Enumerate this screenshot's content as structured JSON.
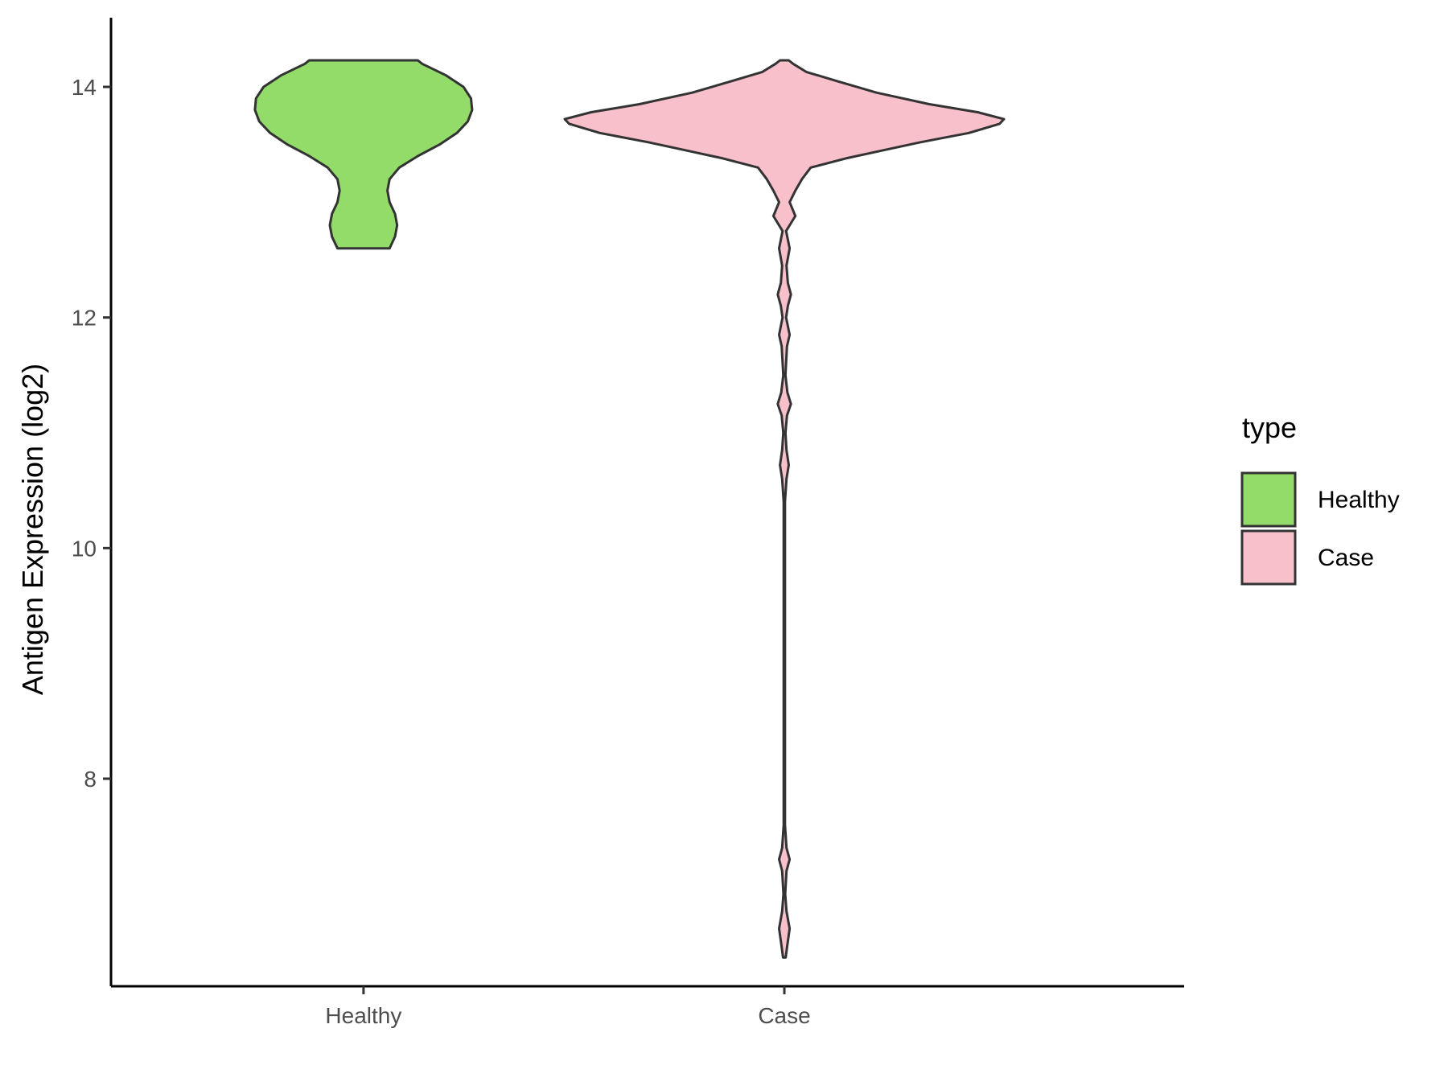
{
  "chart_data": {
    "type": "violin",
    "title": "",
    "xlabel": "",
    "ylabel": "Antigen Expression (log2)",
    "ylim": [
      6.2,
      14.6
    ],
    "yticks": [
      8,
      10,
      12,
      14
    ],
    "categories": [
      "Healthy",
      "Case"
    ],
    "grid": false,
    "legend": {
      "title": "type",
      "position": "right",
      "entries": [
        {
          "label": "Healthy",
          "color": "#93dc6a"
        },
        {
          "label": "Case",
          "color": "#f8c0cb"
        }
      ]
    },
    "series": [
      {
        "category": "Healthy",
        "color": "#93dc6a",
        "min": 12.6,
        "max": 14.23,
        "density_profile": [
          [
            12.6,
            0.24
          ],
          [
            12.7,
            0.29
          ],
          [
            12.8,
            0.31
          ],
          [
            12.9,
            0.29
          ],
          [
            13.0,
            0.24
          ],
          [
            13.1,
            0.22
          ],
          [
            13.2,
            0.24
          ],
          [
            13.3,
            0.33
          ],
          [
            13.4,
            0.5
          ],
          [
            13.5,
            0.7
          ],
          [
            13.6,
            0.86
          ],
          [
            13.7,
            0.96
          ],
          [
            13.8,
            1.0
          ],
          [
            13.9,
            0.99
          ],
          [
            14.0,
            0.92
          ],
          [
            14.1,
            0.76
          ],
          [
            14.2,
            0.54
          ],
          [
            14.23,
            0.5
          ]
        ]
      },
      {
        "category": "Case",
        "color": "#f8c0cb",
        "min": 6.45,
        "max": 14.23,
        "density_profile": [
          [
            6.45,
            0.006
          ],
          [
            6.55,
            0.013
          ],
          [
            6.7,
            0.024
          ],
          [
            6.85,
            0.01
          ],
          [
            7.0,
            0.004
          ],
          [
            7.2,
            0.01
          ],
          [
            7.3,
            0.024
          ],
          [
            7.4,
            0.01
          ],
          [
            7.6,
            0.003
          ],
          [
            10.4,
            0.003
          ],
          [
            10.6,
            0.01
          ],
          [
            10.72,
            0.02
          ],
          [
            10.85,
            0.01
          ],
          [
            11.0,
            0.005
          ],
          [
            11.15,
            0.012
          ],
          [
            11.25,
            0.03
          ],
          [
            11.35,
            0.014
          ],
          [
            11.5,
            0.005
          ],
          [
            11.75,
            0.012
          ],
          [
            11.85,
            0.024
          ],
          [
            12.0,
            0.008
          ],
          [
            12.1,
            0.016
          ],
          [
            12.2,
            0.03
          ],
          [
            12.3,
            0.016
          ],
          [
            12.45,
            0.01
          ],
          [
            12.6,
            0.024
          ],
          [
            12.75,
            0.008
          ],
          [
            12.88,
            0.05
          ],
          [
            13.0,
            0.024
          ],
          [
            13.1,
            0.05
          ],
          [
            13.2,
            0.08
          ],
          [
            13.3,
            0.12
          ],
          [
            13.38,
            0.28
          ],
          [
            13.45,
            0.45
          ],
          [
            13.52,
            0.62
          ],
          [
            13.6,
            0.84
          ],
          [
            13.68,
            0.98
          ],
          [
            13.72,
            1.0
          ],
          [
            13.78,
            0.88
          ],
          [
            13.85,
            0.66
          ],
          [
            13.95,
            0.42
          ],
          [
            14.05,
            0.24
          ],
          [
            14.13,
            0.1
          ],
          [
            14.2,
            0.04
          ],
          [
            14.23,
            0.02
          ]
        ]
      }
    ]
  }
}
